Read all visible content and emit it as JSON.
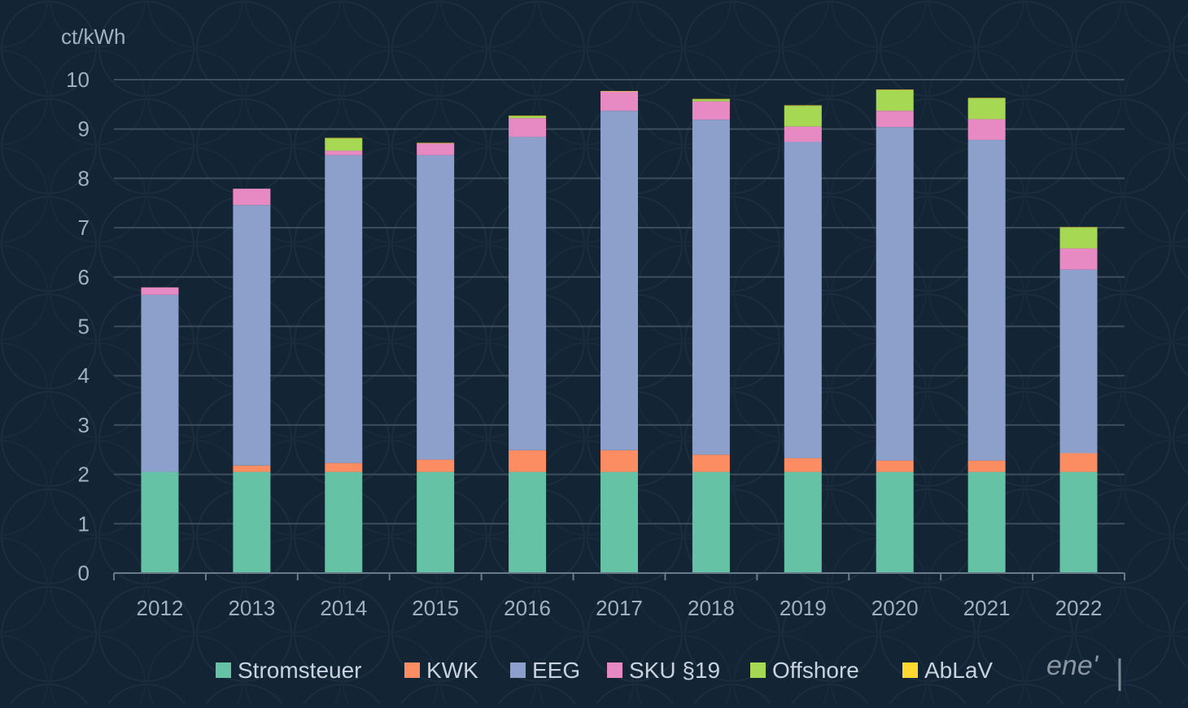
{
  "chart_data": {
    "type": "bar",
    "stacked": true,
    "ylabel": "ct/kWh",
    "ylim": [
      0,
      10
    ],
    "yticks": [
      0,
      1,
      2,
      3,
      4,
      5,
      6,
      7,
      8,
      9,
      10
    ],
    "grid": true,
    "legend_position": "bottom",
    "categories": [
      "2012",
      "2013",
      "2014",
      "2015",
      "2016",
      "2017",
      "2018",
      "2019",
      "2020",
      "2021",
      "2022"
    ],
    "series": [
      {
        "name": "Stromsteuer",
        "color": "#66c2a5",
        "values": [
          2.05,
          2.05,
          2.05,
          2.05,
          2.05,
          2.05,
          2.05,
          2.05,
          2.05,
          2.05,
          2.05
        ]
      },
      {
        "name": "KWK",
        "color": "#fc8d62",
        "values": [
          0.0,
          0.13,
          0.18,
          0.25,
          0.44,
          0.44,
          0.35,
          0.28,
          0.23,
          0.23,
          0.38
        ]
      },
      {
        "name": "EEG",
        "color": "#8da0cb",
        "values": [
          3.59,
          5.28,
          6.24,
          6.17,
          6.35,
          6.88,
          6.79,
          6.41,
          6.76,
          6.5,
          3.72
        ]
      },
      {
        "name": "SKU §19",
        "color": "#e78ac3",
        "values": [
          0.15,
          0.33,
          0.09,
          0.24,
          0.38,
          0.39,
          0.37,
          0.31,
          0.33,
          0.42,
          0.43
        ]
      },
      {
        "name": "Offshore",
        "color": "#a6d854",
        "values": [
          0.0,
          0.0,
          0.25,
          0.0,
          0.04,
          0.0,
          0.04,
          0.42,
          0.42,
          0.42,
          0.42
        ]
      },
      {
        "name": "AbLaV",
        "color": "#ffd92f",
        "values": [
          0.0,
          0.0,
          0.01,
          0.01,
          0.01,
          0.01,
          0.01,
          0.01,
          0.01,
          0.01,
          0.01
        ]
      }
    ]
  },
  "logo": {
    "text": "ene'"
  },
  "colors": {
    "background": "#132434",
    "grid": "#3e4d5c",
    "text": "#9fb1c3"
  }
}
